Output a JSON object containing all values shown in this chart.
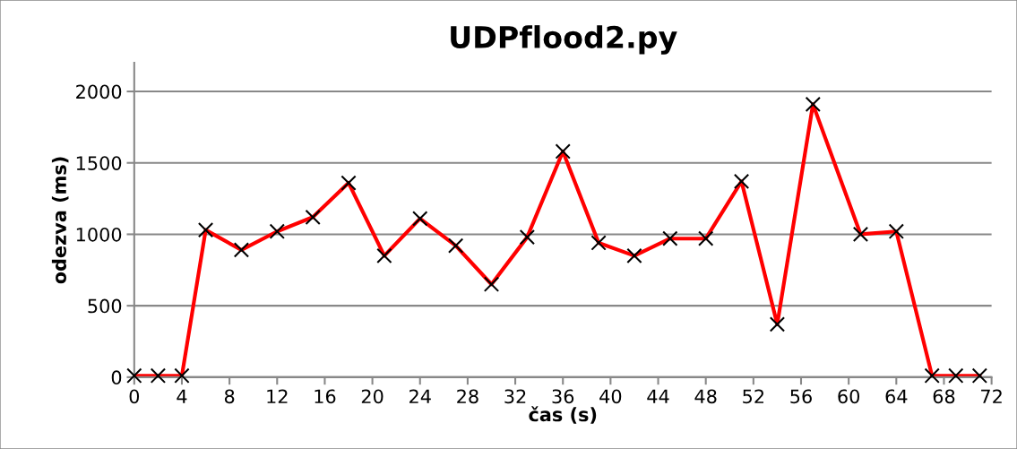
{
  "chart_data": {
    "type": "line",
    "title": "UDPflood2.py",
    "xlabel": "čas (s)",
    "ylabel": "odezva (ms)",
    "x": [
      0,
      2,
      4,
      6,
      9,
      12,
      15,
      18,
      21,
      24,
      27,
      30,
      33,
      36,
      39,
      42,
      45,
      48,
      51,
      54,
      57,
      61,
      64,
      67,
      69,
      71
    ],
    "series": [
      {
        "color": "#ff0000",
        "values": [
          10,
          10,
          10,
          1030,
          890,
          1020,
          1120,
          1360,
          850,
          1110,
          920,
          650,
          980,
          1580,
          940,
          850,
          970,
          970,
          1370,
          370,
          1910,
          1000,
          1020,
          10,
          10,
          10
        ]
      }
    ],
    "xlim": [
      0,
      72
    ],
    "xticks": [
      0,
      4,
      8,
      12,
      16,
      20,
      24,
      28,
      32,
      36,
      40,
      44,
      48,
      52,
      56,
      60,
      64,
      68,
      72
    ],
    "ylim": [
      0,
      2200
    ],
    "yticks": [
      0,
      500,
      1000,
      1500,
      2000
    ],
    "grid": "y",
    "legend": false,
    "marker": "cross",
    "line_style": "solid"
  }
}
